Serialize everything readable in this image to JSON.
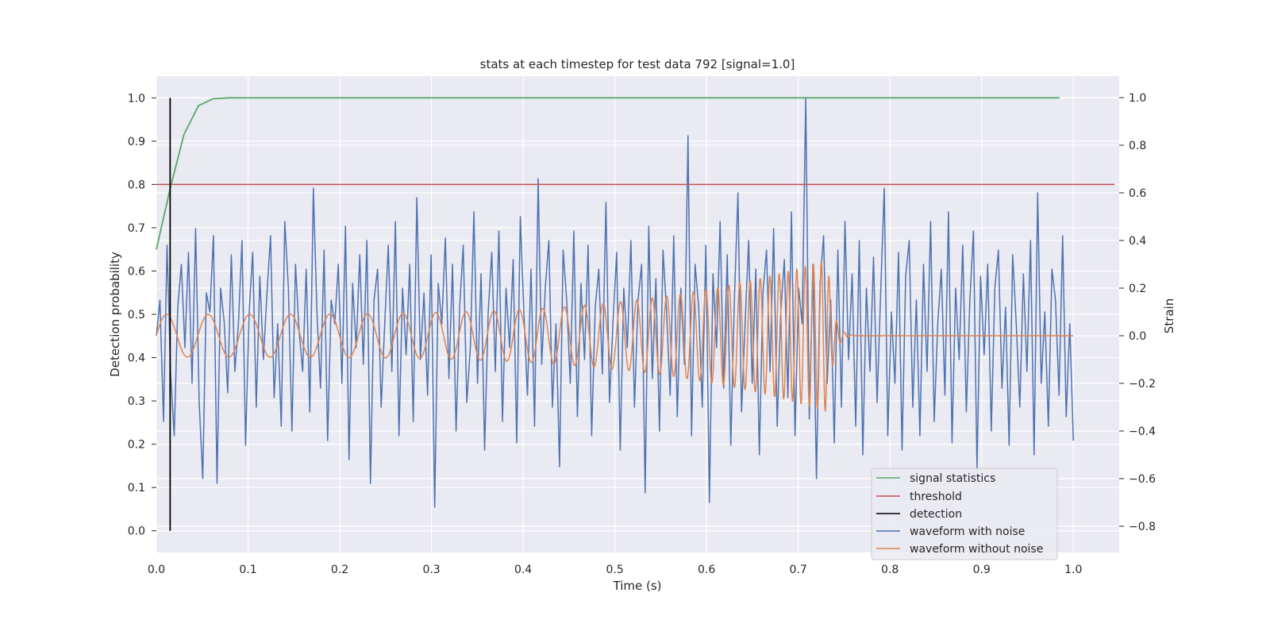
{
  "chart_data": {
    "type": "line",
    "title": "stats at each timestep for test data 792 [signal=1.0]",
    "xlabel": "Time (s)",
    "ylabel_left": "Detection probability",
    "ylabel_right": "Strain",
    "xlim": [
      0.0,
      1.05
    ],
    "ylim_left": [
      -0.05,
      1.05
    ],
    "ylim_right": [
      -0.91,
      1.09
    ],
    "x_ticks": [
      0.0,
      0.1,
      0.2,
      0.3,
      0.4,
      0.5,
      0.6,
      0.7,
      0.8,
      0.9,
      1.0
    ],
    "x_tick_labels": [
      "0.0",
      "0.1",
      "0.2",
      "0.3",
      "0.4",
      "0.5",
      "0.6",
      "0.7",
      "0.8",
      "0.9",
      "1.0"
    ],
    "y_left_ticks": [
      0.0,
      0.1,
      0.2,
      0.3,
      0.4,
      0.5,
      0.6,
      0.7,
      0.8,
      0.9,
      1.0
    ],
    "y_left_tick_labels": [
      "0.0",
      "0.1",
      "0.2",
      "0.3",
      "0.4",
      "0.5",
      "0.6",
      "0.7",
      "0.8",
      "0.9",
      "1.0"
    ],
    "y_right_ticks": [
      -0.8,
      -0.6,
      -0.4,
      -0.2,
      0.0,
      0.2,
      0.4,
      0.6,
      0.8,
      1.0
    ],
    "y_right_tick_labels": [
      "−0.8",
      "−0.6",
      "−0.4",
      "−0.2",
      "0.0",
      "0.2",
      "0.4",
      "0.6",
      "0.8",
      "1.0"
    ],
    "grid": true,
    "legend_position": "bottom-right",
    "colors": {
      "background": "#eaeaf2",
      "grid": "#ffffff",
      "signal_statistics": "#55a868",
      "threshold": "#c44e52",
      "detection": "#000000",
      "waveform_with_noise": "#4c72b0",
      "waveform_without_noise": "#dd8452"
    },
    "series": [
      {
        "name": "signal statistics",
        "axis": "left",
        "x": [
          0.0,
          0.015,
          0.03,
          0.046,
          0.062,
          0.08,
          0.1,
          0.985
        ],
        "y": [
          0.65,
          0.79,
          0.915,
          0.982,
          0.998,
          1.0,
          1.0,
          1.0
        ]
      },
      {
        "name": "threshold",
        "axis": "left",
        "x": [
          0.0,
          1.045
        ],
        "y": [
          0.8,
          0.8
        ]
      },
      {
        "name": "detection",
        "axis": "left",
        "x": [
          0.015,
          0.015
        ],
        "y": [
          0.0,
          1.0
        ]
      },
      {
        "name": "waveform with noise",
        "axis": "right",
        "x_start": 0.0,
        "x_end": 1.0,
        "y": [
          0.0,
          0.15,
          -0.36,
          0.38,
          -0.16,
          -0.42,
          0.12,
          0.3,
          -0.05,
          0.35,
          -0.2,
          0.45,
          -0.28,
          -0.6,
          0.18,
          0.1,
          0.42,
          -0.62,
          0.2,
          0.06,
          -0.24,
          0.34,
          -0.15,
          0.05,
          0.4,
          -0.46,
          0.1,
          0.35,
          -0.3,
          0.25,
          -0.1,
          0.18,
          0.42,
          -0.26,
          0.05,
          -0.38,
          0.48,
          0.2,
          -0.4,
          0.3,
          0.02,
          -0.15,
          0.28,
          -0.32,
          0.62,
          0.1,
          -0.22,
          0.36,
          -0.44,
          0.15,
          0.05,
          0.3,
          -0.2,
          0.46,
          -0.52,
          0.22,
          -0.05,
          0.34,
          -0.12,
          0.4,
          -0.62,
          0.15,
          0.28,
          -0.3,
          0.05,
          0.38,
          -0.15,
          0.48,
          -0.42,
          0.2,
          -0.08,
          0.3,
          -0.36,
          0.58,
          -0.1,
          0.18,
          -0.25,
          0.34,
          -0.72,
          0.22,
          0.05,
          0.41,
          -0.18,
          0.3,
          -0.4,
          0.12,
          0.38,
          -0.28,
          -0.05,
          0.52,
          -0.2,
          0.26,
          -0.48,
          0.1,
          0.35,
          -0.15,
          0.44,
          -0.36,
          0.2,
          -0.05,
          0.32,
          -0.45,
          0.5,
          0.1,
          -0.25,
          0.28,
          -0.38,
          0.66,
          -0.12,
          0.2,
          0.4,
          -0.3,
          0.05,
          -0.55,
          0.36,
          0.15,
          -0.2,
          0.44,
          -0.34,
          0.22,
          -0.1,
          0.38,
          -0.42,
          0.12,
          0.28,
          -0.16,
          0.56,
          -0.28,
          0.06,
          0.35,
          -0.48,
          0.2,
          -0.05,
          0.4,
          -0.3,
          0.15,
          0.3,
          -0.66,
          0.46,
          -0.18,
          0.24,
          -0.4,
          0.36,
          0.1,
          -0.25,
          0.42,
          -0.34,
          0.2,
          -0.12,
          0.84,
          -0.42,
          0.3,
          0.12,
          -0.3,
          0.38,
          -0.7,
          0.26,
          -0.05,
          0.48,
          -0.22,
          0.34,
          -0.46,
          0.15,
          0.6,
          -0.32,
          0.05,
          0.4,
          -0.2,
          0.28,
          -0.5,
          0.18,
          0.36,
          -0.15,
          0.45,
          -0.38,
          0.1,
          0.32,
          -0.26,
          0.52,
          -0.42,
          0.2,
          0.05,
          1.0,
          -0.35,
          0.3,
          -0.6,
          0.22,
          0.42,
          -0.2,
          0.15,
          -0.45,
          0.36,
          -0.3,
          0.48,
          -0.1,
          0.26,
          -0.38,
          0.4,
          -0.5,
          0.2,
          -0.15,
          0.33,
          -0.28,
          0.18,
          0.62,
          -0.42,
          0.1,
          -0.2,
          0.35,
          -0.48,
          0.25,
          0.4,
          -0.3,
          0.15,
          -0.42,
          0.3,
          -0.15,
          0.48,
          -0.36,
          0.05,
          0.28,
          -0.25,
          0.52,
          -0.45,
          0.2,
          -0.1,
          0.38,
          -0.32,
          0.15,
          0.44,
          -0.56,
          0.25,
          -0.08,
          0.3,
          -0.4,
          0.2,
          0.36,
          -0.22,
          0.12,
          -0.46,
          0.34,
          0.05,
          -0.3,
          0.26,
          -0.15,
          0.4,
          -0.5,
          0.6,
          -0.2,
          0.1,
          -0.38,
          0.28,
          0.15,
          -0.25,
          0.42,
          -0.34,
          0.05,
          -0.44
        ]
      },
      {
        "name": "waveform without noise",
        "axis": "right",
        "x_start": 0.0,
        "x_end": 1.0,
        "chirp": {
          "f_start_hz": 22,
          "f_end_hz": 120,
          "amplitude_start": 0.09,
          "amplitude_peak": 0.32,
          "merger_time": 0.732,
          "ringdown_end": 0.76
        }
      }
    ]
  },
  "legend": {
    "items": [
      {
        "label": "signal statistics",
        "color": "#55a868"
      },
      {
        "label": "threshold",
        "color": "#c44e52"
      },
      {
        "label": "detection",
        "color": "#000000"
      },
      {
        "label": "waveform with noise",
        "color": "#4c72b0"
      },
      {
        "label": "waveform without noise",
        "color": "#dd8452"
      }
    ]
  }
}
